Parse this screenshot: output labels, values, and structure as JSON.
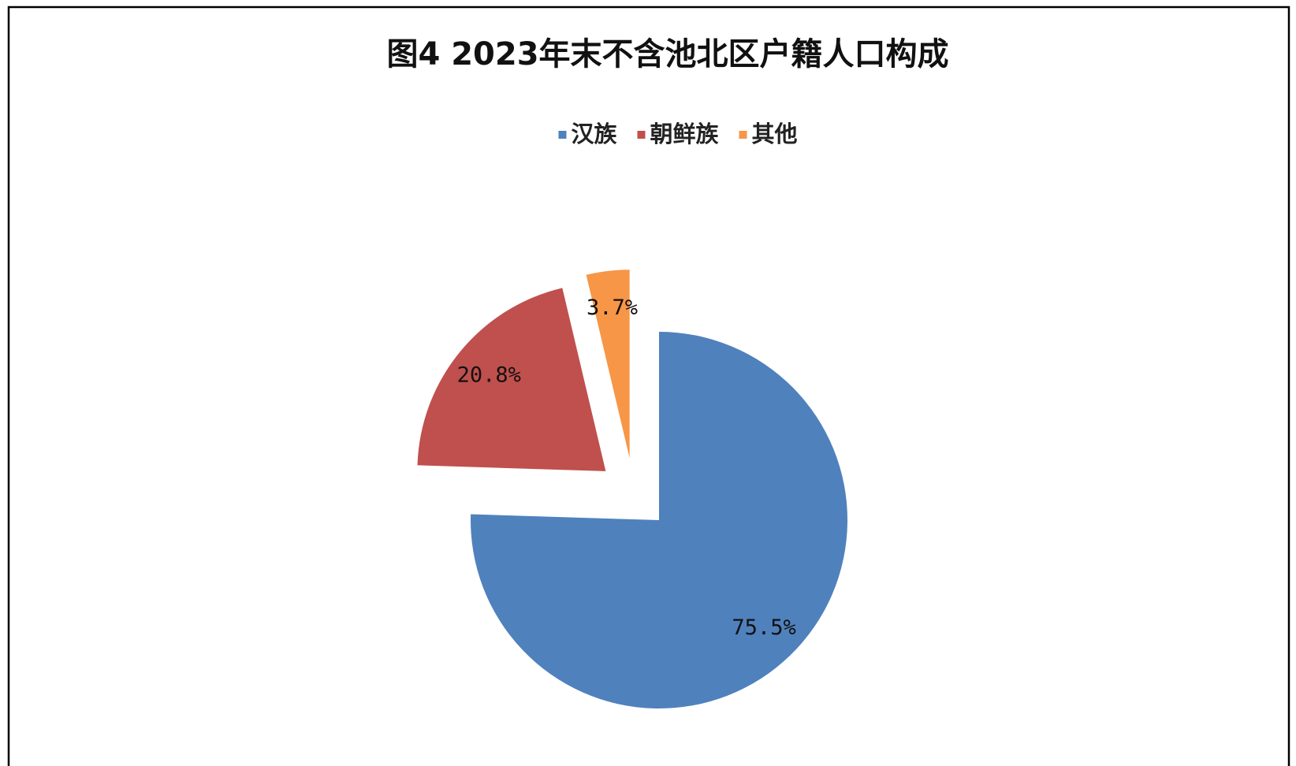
{
  "chart_data": {
    "type": "pie",
    "title": "图4  2023年末不含池北区户籍人口构成",
    "categories": [
      "汉族",
      "朝鲜族",
      "其他"
    ],
    "values": [
      75.5,
      20.8,
      3.7
    ],
    "value_labels": [
      "75.5%",
      "20.8%",
      "3.7%"
    ],
    "colors": [
      "#4f81bd",
      "#c0504d",
      "#f79646"
    ],
    "legend": "top"
  }
}
